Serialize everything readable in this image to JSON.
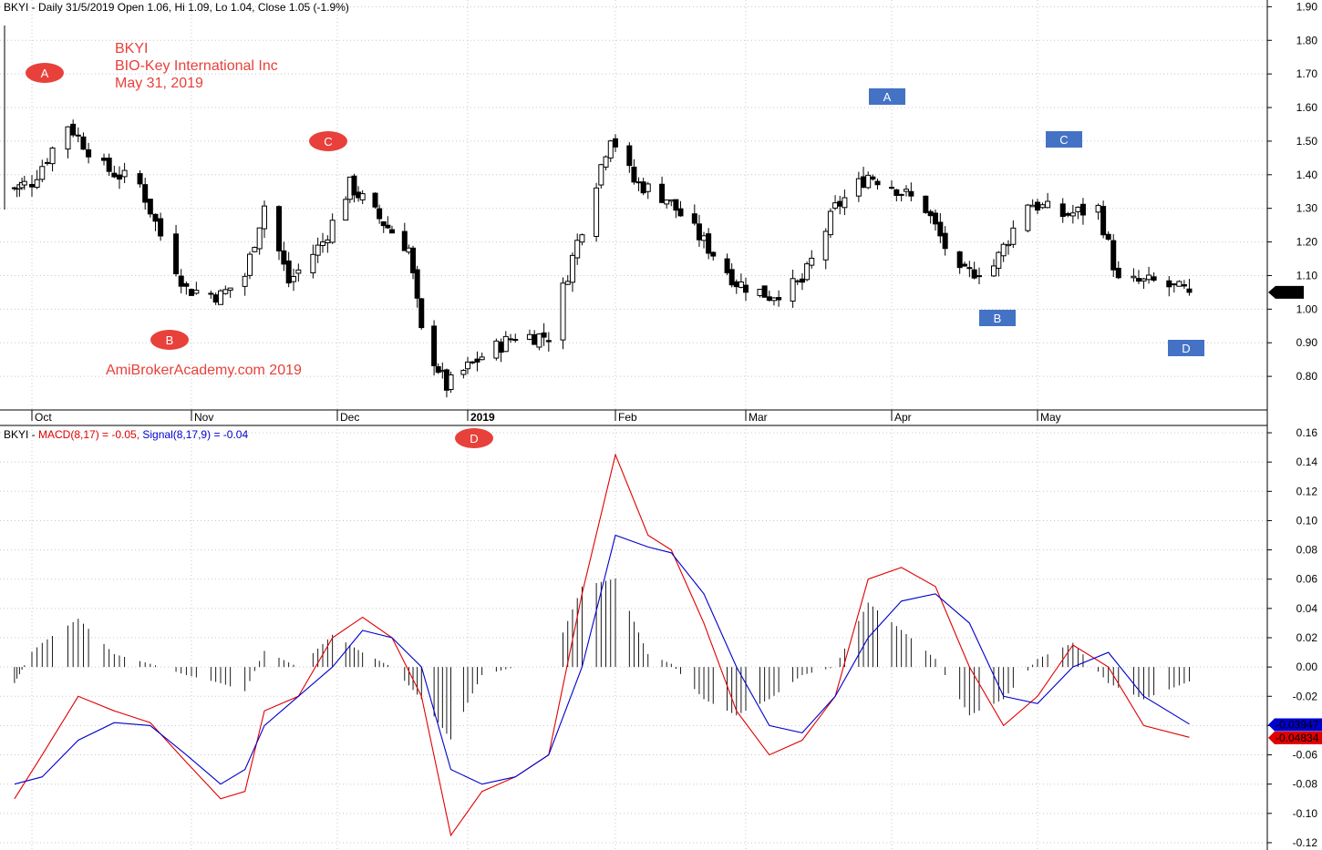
{
  "price_panel": {
    "header": "BKYI - Daily 31/5/2019 Open 1.06, Hi 1.09, Lo 1.04, Close 1.05 (-1.9%)",
    "title_lines": [
      "BKYI",
      "BIO-Key International Inc",
      "May 31, 2019"
    ],
    "watermark": "AmiBrokerAcademy.com  2019",
    "last_price_label": "1.05"
  },
  "macd_panel": {
    "header_prefix": "BKYI - ",
    "header_macd": "MACD(8,17) = -0.05, ",
    "header_signal": "Signal(8,17,9) = -0.04",
    "signal_tag": "-0.03947",
    "macd_tag": "-0.04834"
  },
  "annotations": {
    "red_ovals": [
      "A",
      "B",
      "C",
      "D"
    ],
    "blue_boxes": [
      "A",
      "B",
      "C",
      "D"
    ]
  },
  "colors": {
    "oval_red": "#e8403a",
    "box_blue": "#4472c4",
    "macd_line": "#e00000",
    "signal_line": "#0000cc",
    "candle": "#000000"
  },
  "chart_data": [
    {
      "type": "candlestick",
      "title": "",
      "x_tick_labels": [
        "Oct",
        "Nov",
        "Dec",
        "2019",
        "Feb",
        "Mar",
        "Apr",
        "May"
      ],
      "y_tick_labels": [
        "1.90",
        "1.80",
        "1.70",
        "1.60",
        "1.50",
        "1.40",
        "1.30",
        "1.20",
        "1.10",
        "1.00",
        "0.90",
        "0.80"
      ],
      "ylim": [
        0.7,
        1.92
      ],
      "grid": true,
      "close_points": [
        {
          "x": "2018-09-24",
          "y": 1.36
        },
        {
          "x": "2018-10-01",
          "y": 1.38
        },
        {
          "x": "2018-10-08",
          "y": 1.55
        },
        {
          "x": "2018-10-15",
          "y": 1.42
        },
        {
          "x": "2018-10-22",
          "y": 1.37
        },
        {
          "x": "2018-10-26",
          "y": 1.22
        },
        {
          "x": "2018-10-31",
          "y": 1.06
        },
        {
          "x": "2018-11-07",
          "y": 1.04
        },
        {
          "x": "2018-11-12",
          "y": 1.1
        },
        {
          "x": "2018-11-16",
          "y": 1.31
        },
        {
          "x": "2018-11-21",
          "y": 1.08
        },
        {
          "x": "2018-11-28",
          "y": 1.2
        },
        {
          "x": "2018-12-04",
          "y": 1.37
        },
        {
          "x": "2018-12-11",
          "y": 1.27
        },
        {
          "x": "2018-12-18",
          "y": 1.18
        },
        {
          "x": "2018-12-21",
          "y": 0.93
        },
        {
          "x": "2018-12-27",
          "y": 0.77
        },
        {
          "x": "2019-01-04",
          "y": 0.86
        },
        {
          "x": "2019-01-11",
          "y": 0.92
        },
        {
          "x": "2019-01-18",
          "y": 0.92
        },
        {
          "x": "2019-01-24",
          "y": 1.2
        },
        {
          "x": "2019-01-31",
          "y": 1.52
        },
        {
          "x": "2019-02-05",
          "y": 1.38
        },
        {
          "x": "2019-02-12",
          "y": 1.33
        },
        {
          "x": "2019-02-20",
          "y": 1.2
        },
        {
          "x": "2019-02-27",
          "y": 1.08
        },
        {
          "x": "2019-03-06",
          "y": 1.04
        },
        {
          "x": "2019-03-13",
          "y": 1.08
        },
        {
          "x": "2019-03-20",
          "y": 1.3
        },
        {
          "x": "2019-03-27",
          "y": 1.4
        },
        {
          "x": "2019-04-01",
          "y": 1.37
        },
        {
          "x": "2019-04-08",
          "y": 1.3
        },
        {
          "x": "2019-04-15",
          "y": 1.1
        },
        {
          "x": "2019-04-22",
          "y": 1.13
        },
        {
          "x": "2019-04-29",
          "y": 1.32
        },
        {
          "x": "2019-05-06",
          "y": 1.28
        },
        {
          "x": "2019-05-13",
          "y": 1.3
        },
        {
          "x": "2019-05-17",
          "y": 1.08
        },
        {
          "x": "2019-05-24",
          "y": 1.08
        },
        {
          "x": "2019-05-31",
          "y": 1.05
        }
      ]
    },
    {
      "type": "line",
      "title": "",
      "x_tick_labels": [],
      "y_tick_labels": [
        "0.16",
        "0.14",
        "0.12",
        "0.10",
        "0.08",
        "0.06",
        "0.04",
        "0.02",
        "0.00",
        "-0.02",
        "-0.04",
        "-0.06",
        "-0.08",
        "-0.10",
        "-0.12"
      ],
      "ylim": [
        -0.125,
        0.165
      ],
      "series": [
        {
          "name": "MACD(8,17)",
          "color": "#e00000",
          "values": [
            {
              "x": "2018-09-24",
              "y": -0.09
            },
            {
              "x": "2018-10-03",
              "y": -0.06
            },
            {
              "x": "2018-10-10",
              "y": -0.02
            },
            {
              "x": "2018-10-17",
              "y": -0.03
            },
            {
              "x": "2018-10-24",
              "y": -0.038
            },
            {
              "x": "2018-10-31",
              "y": -0.065
            },
            {
              "x": "2018-11-07",
              "y": -0.09
            },
            {
              "x": "2018-11-12",
              "y": -0.085
            },
            {
              "x": "2018-11-16",
              "y": -0.03
            },
            {
              "x": "2018-11-23",
              "y": -0.02
            },
            {
              "x": "2018-11-30",
              "y": 0.02
            },
            {
              "x": "2018-12-07",
              "y": 0.034
            },
            {
              "x": "2018-12-14",
              "y": 0.02
            },
            {
              "x": "2018-12-21",
              "y": -0.02
            },
            {
              "x": "2018-12-28",
              "y": -0.115
            },
            {
              "x": "2019-01-04",
              "y": -0.085
            },
            {
              "x": "2019-01-11",
              "y": -0.075
            },
            {
              "x": "2019-01-18",
              "y": -0.06
            },
            {
              "x": "2019-01-25",
              "y": 0.05
            },
            {
              "x": "2019-02-01",
              "y": 0.145
            },
            {
              "x": "2019-02-08",
              "y": 0.09
            },
            {
              "x": "2019-02-13",
              "y": 0.08
            },
            {
              "x": "2019-02-20",
              "y": 0.03
            },
            {
              "x": "2019-02-27",
              "y": -0.03
            },
            {
              "x": "2019-03-06",
              "y": -0.06
            },
            {
              "x": "2019-03-13",
              "y": -0.05
            },
            {
              "x": "2019-03-20",
              "y": -0.02
            },
            {
              "x": "2019-03-27",
              "y": 0.06
            },
            {
              "x": "2019-04-03",
              "y": 0.068
            },
            {
              "x": "2019-04-10",
              "y": 0.055
            },
            {
              "x": "2019-04-17",
              "y": 0.0
            },
            {
              "x": "2019-04-24",
              "y": -0.04
            },
            {
              "x": "2019-05-01",
              "y": -0.02
            },
            {
              "x": "2019-05-08",
              "y": 0.015
            },
            {
              "x": "2019-05-15",
              "y": 0.0
            },
            {
              "x": "2019-05-22",
              "y": -0.04
            },
            {
              "x": "2019-05-31",
              "y": -0.048
            }
          ]
        },
        {
          "name": "Signal(8,17,9)",
          "color": "#0000cc",
          "values": [
            {
              "x": "2018-09-24",
              "y": -0.08
            },
            {
              "x": "2018-10-03",
              "y": -0.075
            },
            {
              "x": "2018-10-10",
              "y": -0.05
            },
            {
              "x": "2018-10-17",
              "y": -0.038
            },
            {
              "x": "2018-10-24",
              "y": -0.04
            },
            {
              "x": "2018-10-31",
              "y": -0.06
            },
            {
              "x": "2018-11-07",
              "y": -0.08
            },
            {
              "x": "2018-11-12",
              "y": -0.07
            },
            {
              "x": "2018-11-16",
              "y": -0.04
            },
            {
              "x": "2018-11-23",
              "y": -0.02
            },
            {
              "x": "2018-11-30",
              "y": 0.0
            },
            {
              "x": "2018-12-07",
              "y": 0.025
            },
            {
              "x": "2018-12-14",
              "y": 0.02
            },
            {
              "x": "2018-12-21",
              "y": 0.0
            },
            {
              "x": "2018-12-28",
              "y": -0.07
            },
            {
              "x": "2019-01-04",
              "y": -0.08
            },
            {
              "x": "2019-01-11",
              "y": -0.075
            },
            {
              "x": "2019-01-18",
              "y": -0.06
            },
            {
              "x": "2019-01-25",
              "y": 0.0
            },
            {
              "x": "2019-02-01",
              "y": 0.09
            },
            {
              "x": "2019-02-08",
              "y": 0.082
            },
            {
              "x": "2019-02-13",
              "y": 0.078
            },
            {
              "x": "2019-02-20",
              "y": 0.05
            },
            {
              "x": "2019-02-27",
              "y": 0.0
            },
            {
              "x": "2019-03-06",
              "y": -0.04
            },
            {
              "x": "2019-03-13",
              "y": -0.045
            },
            {
              "x": "2019-03-20",
              "y": -0.02
            },
            {
              "x": "2019-03-27",
              "y": 0.02
            },
            {
              "x": "2019-04-03",
              "y": 0.045
            },
            {
              "x": "2019-04-10",
              "y": 0.05
            },
            {
              "x": "2019-04-17",
              "y": 0.03
            },
            {
              "x": "2019-04-24",
              "y": -0.02
            },
            {
              "x": "2019-05-01",
              "y": -0.025
            },
            {
              "x": "2019-05-08",
              "y": 0.0
            },
            {
              "x": "2019-05-15",
              "y": 0.01
            },
            {
              "x": "2019-05-22",
              "y": -0.02
            },
            {
              "x": "2019-05-31",
              "y": -0.039
            }
          ]
        }
      ]
    }
  ]
}
